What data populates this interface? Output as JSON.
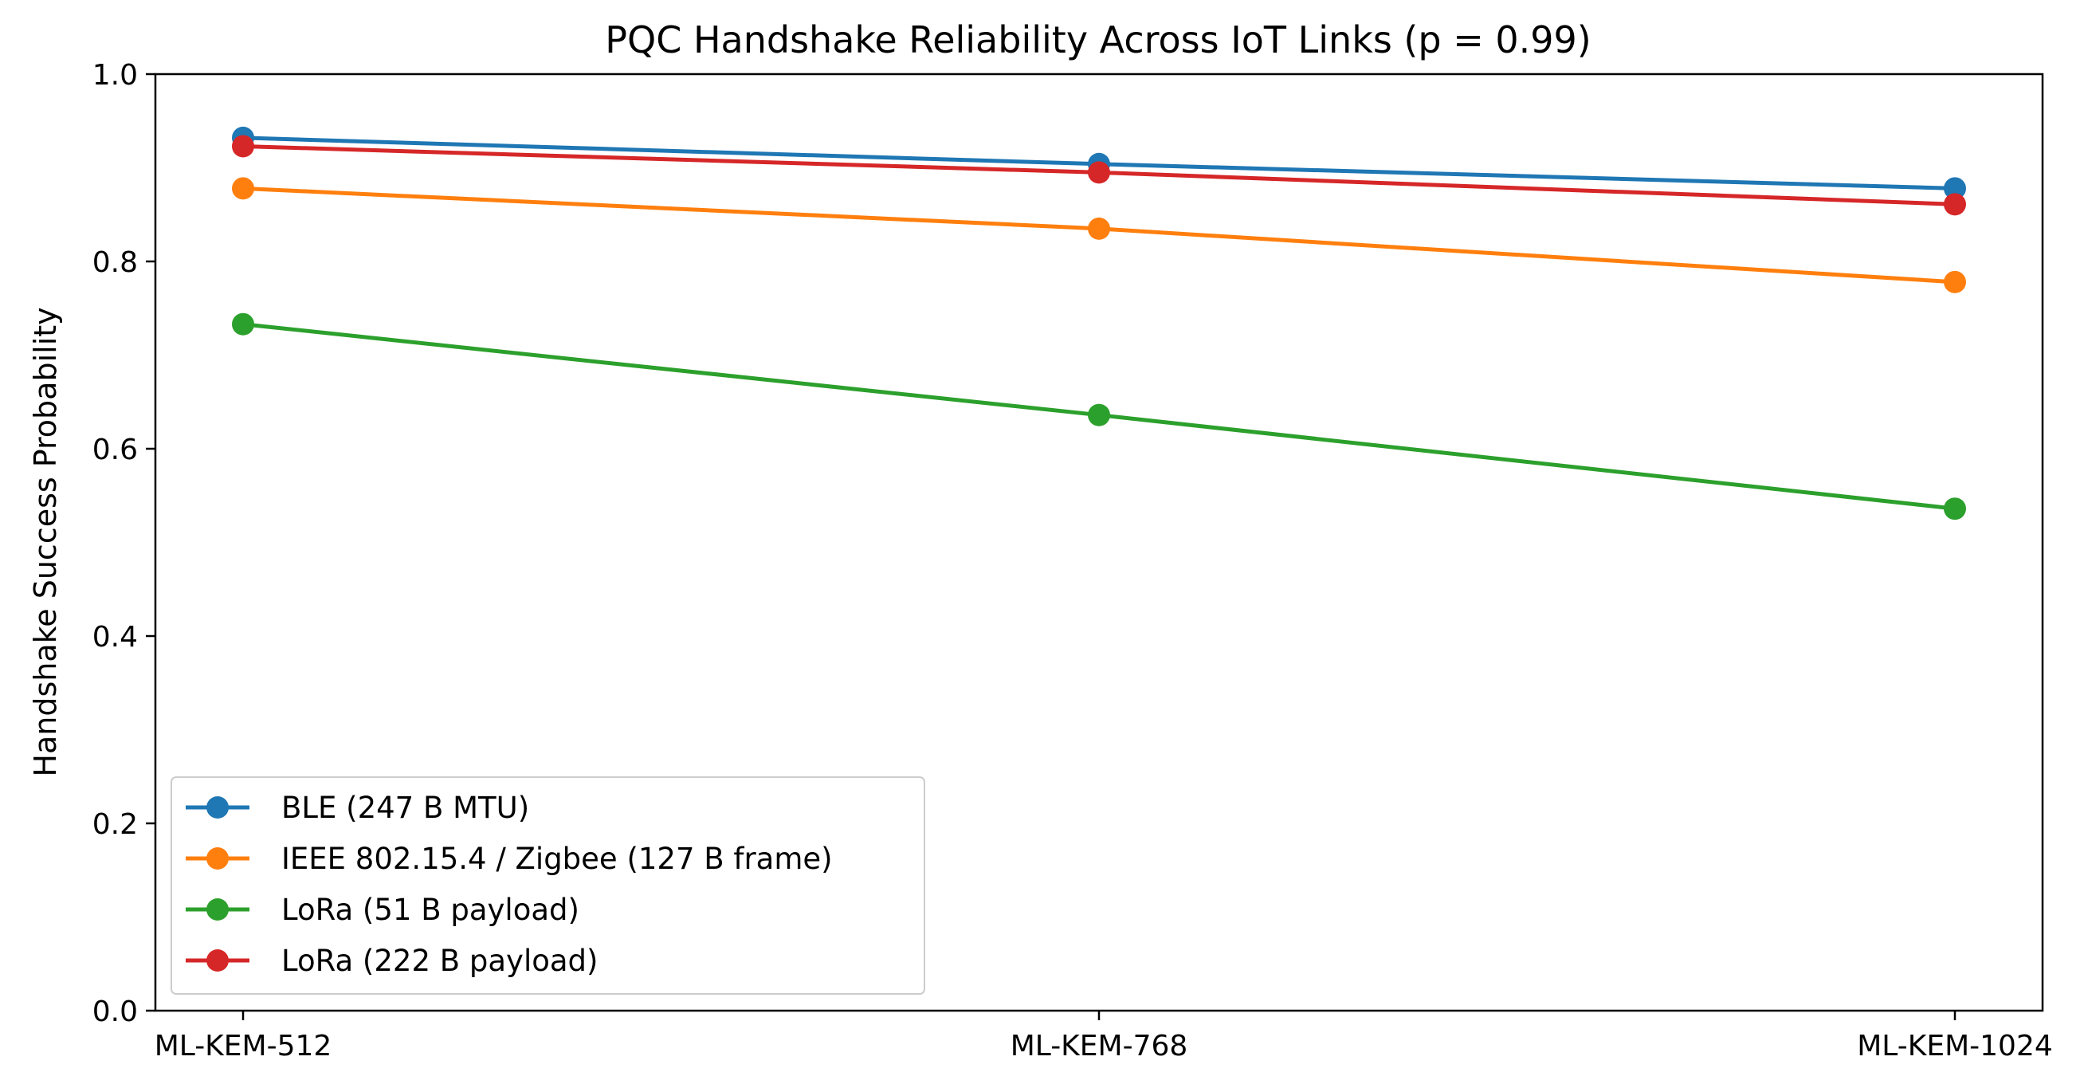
{
  "chart_data": {
    "type": "line",
    "title": "PQC Handshake Reliability Across IoT Links (p = 0.99)",
    "xlabel": "",
    "ylabel": "Handshake Success Probability",
    "categories": [
      "ML-KEM-512",
      "ML-KEM-768",
      "ML-KEM-1024"
    ],
    "ylim": [
      0.0,
      1.0
    ],
    "yticks": [
      "0.0",
      "0.2",
      "0.4",
      "0.6",
      "0.8",
      "1.0"
    ],
    "grid": false,
    "legend_position": "lower-left",
    "series": [
      {
        "name": "BLE (247 B MTU)",
        "color": "#1f77b4",
        "values": [
          0.932,
          0.904,
          0.878
        ]
      },
      {
        "name": "IEEE 802.15.4 / Zigbee (127 B frame)",
        "color": "#ff7f0e",
        "values": [
          0.878,
          0.835,
          0.778
        ]
      },
      {
        "name": "LoRa (51 B payload)",
        "color": "#2ca02c",
        "values": [
          0.733,
          0.636,
          0.536
        ]
      },
      {
        "name": "LoRa (222 B payload)",
        "color": "#d62728",
        "values": [
          0.923,
          0.895,
          0.861
        ]
      }
    ]
  }
}
